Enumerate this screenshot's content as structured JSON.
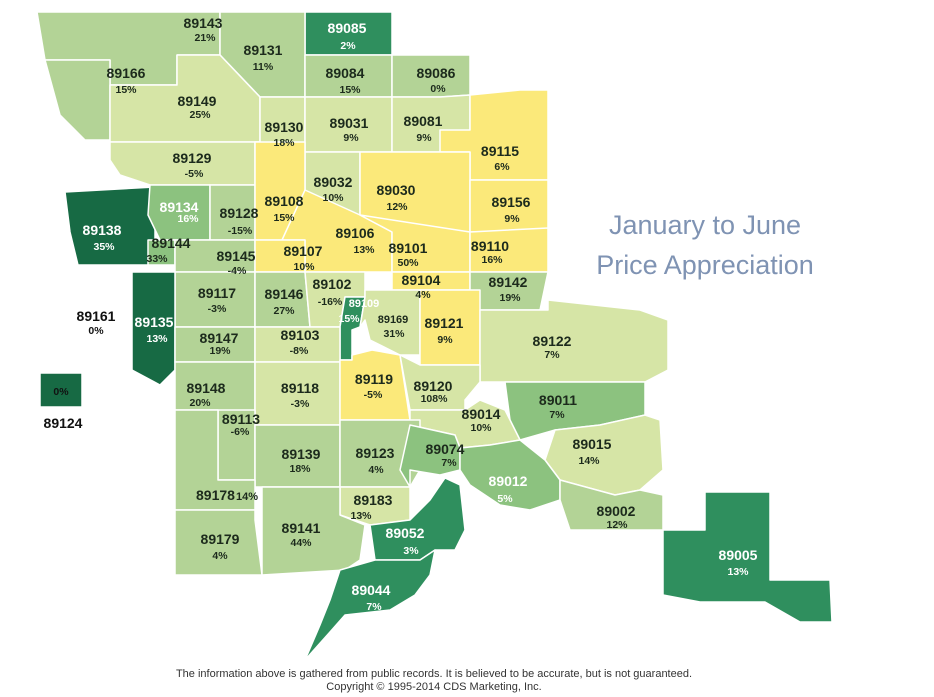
{
  "title": {
    "line1": "January to June",
    "line2": "Price Appreciation"
  },
  "footer": {
    "disclaimer": "The information above is gathered from public records.  It is believed to be accurate, but is not guaranteed.",
    "copyright": "Copyright © 1995-2014 CDS Marketing, Inc."
  },
  "colors": {
    "yellow": "#fbe97a",
    "pale": "#d6e5a6",
    "light": "#b3d396",
    "mid": "#8cc27f",
    "green": "#2f8f5e",
    "dark": "#176a44",
    "border": "#ffffff"
  },
  "zips": [
    {
      "zip": "89143",
      "pct": "21%",
      "shade": "light"
    },
    {
      "zip": "89085",
      "pct": "2%",
      "shade": "green"
    },
    {
      "zip": "89131",
      "pct": "11%",
      "shade": "light"
    },
    {
      "zip": "89166",
      "pct": "15%",
      "shade": "light"
    },
    {
      "zip": "89084",
      "pct": "15%",
      "shade": "light"
    },
    {
      "zip": "89086",
      "pct": "0%",
      "shade": "light"
    },
    {
      "zip": "89149",
      "pct": "25%",
      "shade": "pale"
    },
    {
      "zip": "89130",
      "pct": "18%",
      "shade": "pale"
    },
    {
      "zip": "89031",
      "pct": "9%",
      "shade": "pale"
    },
    {
      "zip": "89081",
      "pct": "9%",
      "shade": "pale"
    },
    {
      "zip": "89115",
      "pct": "6%",
      "shade": "yellow"
    },
    {
      "zip": "89129",
      "pct": "-5%",
      "shade": "pale"
    },
    {
      "zip": "89032",
      "pct": "10%",
      "shade": "pale"
    },
    {
      "zip": "89030",
      "pct": "12%",
      "shade": "yellow"
    },
    {
      "zip": "89156",
      "pct": "9%",
      "shade": "yellow"
    },
    {
      "zip": "89138",
      "pct": "35%",
      "shade": "dark"
    },
    {
      "zip": "89134",
      "pct": "16%",
      "shade": "mid"
    },
    {
      "zip": "89128",
      "pct": "-15%",
      "shade": "light"
    },
    {
      "zip": "89108",
      "pct": "15%",
      "shade": "yellow"
    },
    {
      "zip": "89106",
      "pct": "13%",
      "shade": "yellow"
    },
    {
      "zip": "89101",
      "pct": "50%",
      "shade": "yellow"
    },
    {
      "zip": "89110",
      "pct": "16%",
      "shade": "yellow"
    },
    {
      "zip": "89144",
      "pct": "33%",
      "shade": "mid"
    },
    {
      "zip": "89145",
      "pct": "-4%",
      "shade": "light"
    },
    {
      "zip": "89107",
      "pct": "10%",
      "shade": "yellow"
    },
    {
      "zip": "89104",
      "pct": "4%",
      "shade": "yellow"
    },
    {
      "zip": "89142",
      "pct": "19%",
      "shade": "light"
    },
    {
      "zip": "89161",
      "pct": "0%",
      "shade": "none"
    },
    {
      "zip": "89117",
      "pct": "-3%",
      "shade": "light"
    },
    {
      "zip": "89146",
      "pct": "27%",
      "shade": "light"
    },
    {
      "zip": "89102",
      "pct": "-16%",
      "shade": "pale"
    },
    {
      "zip": "89109",
      "pct": "15%",
      "shade": "green"
    },
    {
      "zip": "89169",
      "pct": "31%",
      "shade": "pale"
    },
    {
      "zip": "89121",
      "pct": "9%",
      "shade": "yellow"
    },
    {
      "zip": "89135",
      "pct": "13%",
      "shade": "dark"
    },
    {
      "zip": "89147",
      "pct": "19%",
      "shade": "light"
    },
    {
      "zip": "89103",
      "pct": "-8%",
      "shade": "pale"
    },
    {
      "zip": "89122",
      "pct": "7%",
      "shade": "pale"
    },
    {
      "zip": "89124",
      "pct": "0%",
      "shade": "dark"
    },
    {
      "zip": "89148",
      "pct": "20%",
      "shade": "light"
    },
    {
      "zip": "89118",
      "pct": "-3%",
      "shade": "pale"
    },
    {
      "zip": "89119",
      "pct": "-5%",
      "shade": "yellow"
    },
    {
      "zip": "89120",
      "pct": "108%",
      "shade": "pale"
    },
    {
      "zip": "89011",
      "pct": "7%",
      "shade": "mid"
    },
    {
      "zip": "89113",
      "pct": "-6%",
      "shade": "light"
    },
    {
      "zip": "89014",
      "pct": "10%",
      "shade": "pale"
    },
    {
      "zip": "89015",
      "pct": "14%",
      "shade": "pale"
    },
    {
      "zip": "89139",
      "pct": "18%",
      "shade": "light"
    },
    {
      "zip": "89123",
      "pct": "4%",
      "shade": "light"
    },
    {
      "zip": "89074",
      "pct": "7%",
      "shade": "mid"
    },
    {
      "zip": "89178",
      "pct": "14%",
      "shade": "light"
    },
    {
      "zip": "89012",
      "pct": "5%",
      "shade": "mid"
    },
    {
      "zip": "89183",
      "pct": "13%",
      "shade": "pale"
    },
    {
      "zip": "89002",
      "pct": "12%",
      "shade": "light"
    },
    {
      "zip": "89179",
      "pct": "4%",
      "shade": "light"
    },
    {
      "zip": "89141",
      "pct": "44%",
      "shade": "light"
    },
    {
      "zip": "89052",
      "pct": "3%",
      "shade": "green"
    },
    {
      "zip": "89005",
      "pct": "13%",
      "shade": "green"
    },
    {
      "zip": "89044",
      "pct": "7%",
      "shade": "green"
    }
  ]
}
